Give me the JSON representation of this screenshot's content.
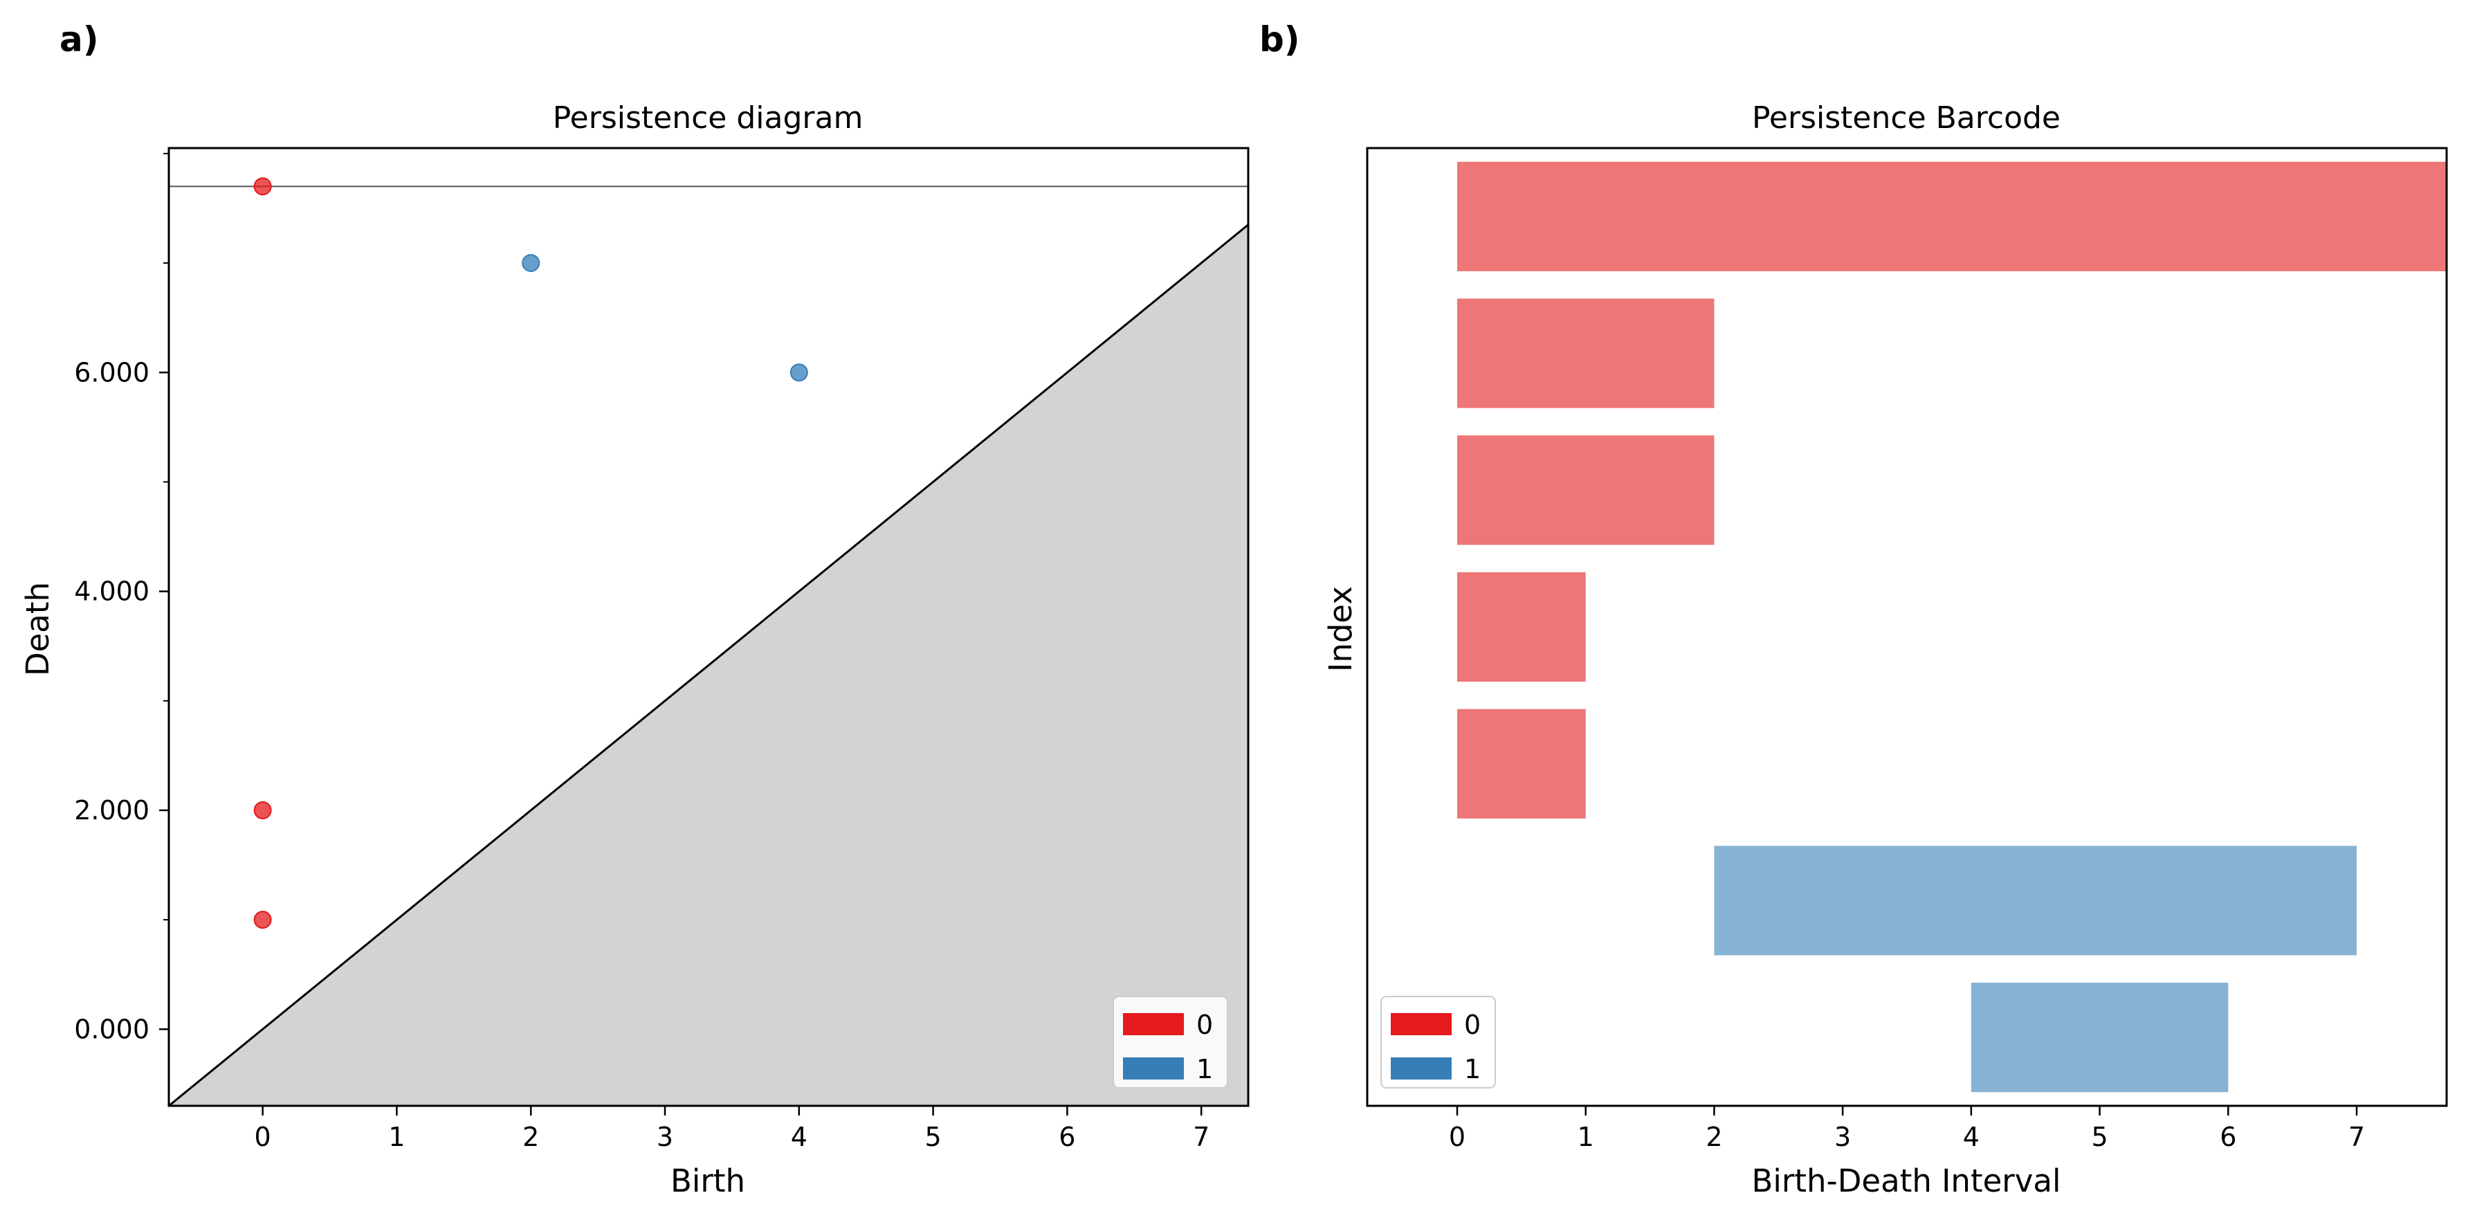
{
  "panel_labels": {
    "a": "a)",
    "b": "b)"
  },
  "chart_data": [
    {
      "type": "scatter",
      "title": "Persistence diagram",
      "xlabel": "Birth",
      "ylabel": "Death",
      "xlim": [
        -0.7,
        7.35
      ],
      "ylim": [
        -0.7,
        8.05
      ],
      "xticks": [
        0,
        1,
        2,
        3,
        4,
        5,
        6,
        7
      ],
      "yticks": [
        0,
        2,
        4,
        6
      ],
      "ytick_labels": [
        "0.000",
        "2.000",
        "4.000",
        "6.000"
      ],
      "yminor_ticks": [
        1,
        3,
        5,
        7,
        8
      ],
      "infinity_line": 7.7,
      "diagonal": true,
      "series": [
        {
          "name": "0",
          "color": "#e41a1c",
          "points": [
            [
              0,
              7.7
            ],
            [
              0,
              2
            ],
            [
              0,
              1
            ]
          ]
        },
        {
          "name": "1",
          "color": "#377eb8",
          "points": [
            [
              2,
              7
            ],
            [
              4,
              6
            ]
          ]
        }
      ],
      "legend": {
        "position": "lower-right",
        "entries": [
          "0",
          "1"
        ]
      }
    },
    {
      "type": "bar",
      "orientation": "horizontal",
      "title": "Persistence Barcode",
      "xlabel": "Birth-Death Interval",
      "ylabel": "Index",
      "xlim": [
        -0.7,
        7.7
      ],
      "xticks": [
        0,
        1,
        2,
        3,
        4,
        5,
        6,
        7
      ],
      "series": [
        {
          "name": "0",
          "color": "#e41a1c",
          "intervals": [
            [
              0,
              7.7
            ],
            [
              0,
              2
            ],
            [
              0,
              2
            ],
            [
              0,
              1
            ],
            [
              0,
              1
            ]
          ]
        },
        {
          "name": "1",
          "color": "#377eb8",
          "intervals": [
            [
              2,
              7
            ],
            [
              4,
              6
            ]
          ]
        }
      ],
      "legend": {
        "position": "lower-left",
        "entries": [
          "0",
          "1"
        ]
      }
    }
  ]
}
